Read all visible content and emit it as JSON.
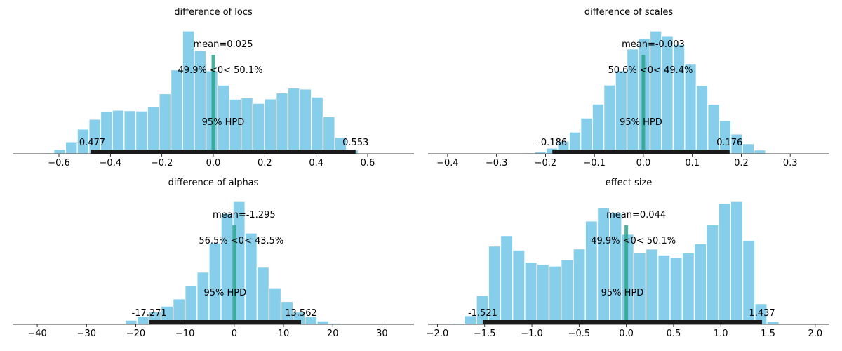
{
  "colors": {
    "bar": "#87ceeb",
    "hpd": "#1a1a1a",
    "ref": "#2ca58d"
  },
  "chart_data": [
    {
      "type": "histogram",
      "title": "difference of locs",
      "xlim": [
        -0.78,
        0.78
      ],
      "xticks": [
        -0.6,
        -0.4,
        -0.2,
        0.0,
        0.2,
        0.4,
        0.6
      ],
      "xtick_labels": [
        "−0.6",
        "−0.4",
        "−0.2",
        "0.0",
        "0.2",
        "0.4",
        "0.6"
      ],
      "bin_start": -0.6653,
      "bin_width": 0.0455,
      "counts": [
        0.8,
        3.6,
        9.8,
        20.1,
        28.1,
        34.3,
        35.5,
        35.1,
        34.8,
        38.6,
        48.9,
        68.3,
        100,
        84.2,
        67.5,
        55.9,
        44.5,
        45.5,
        41.1,
        44.7,
        49.5,
        53.5,
        52.7,
        46.2,
        30.2,
        13.4,
        3.1
      ],
      "mean_label": "mean=0.025",
      "ref_value": 0.0,
      "ref_label": "49.9% <0< 50.1%",
      "hpd_label": "95% HPD",
      "hpd": [
        -0.477,
        0.553
      ],
      "hpd_low_label": "-0.477",
      "hpd_high_label": "0.553"
    },
    {
      "type": "histogram",
      "title": "difference of scales",
      "xlim": [
        -0.44,
        0.38
      ],
      "xticks": [
        -0.4,
        -0.3,
        -0.2,
        -0.1,
        0.0,
        0.1,
        0.2,
        0.3
      ],
      "xtick_labels": [
        "−0.4",
        "−0.3",
        "−0.2",
        "−0.1",
        "0.0",
        "0.1",
        "0.2",
        "0.3"
      ],
      "bin_start": -0.2695,
      "bin_width": 0.0236,
      "counts": [
        0.3,
        0.8,
        1.7,
        4.6,
        10.3,
        17.7,
        29.1,
        40.5,
        56.0,
        67.6,
        85.3,
        93.7,
        100,
        96.1,
        89.1,
        73.4,
        55.6,
        40.4,
        27.0,
        16.1,
        8.2,
        3.1,
        0.6
      ],
      "mean_label": "mean=-0.003",
      "ref_value": 0.0,
      "ref_label": "50.6% <0< 49.4%",
      "hpd_label": "95% HPD",
      "hpd": [
        -0.186,
        0.176
      ],
      "hpd_low_label": "-0.186",
      "hpd_high_label": "0.176"
    },
    {
      "type": "histogram",
      "title": "difference of alphas",
      "xlim": [
        -45.0,
        36.5
      ],
      "xticks": [
        -40,
        -30,
        -20,
        -10,
        0,
        10,
        20,
        30
      ],
      "xtick_labels": [
        "−40",
        "−30",
        "−20",
        "−10",
        "0",
        "10",
        "20",
        "30"
      ],
      "bin_start": -24.6,
      "bin_width": 2.436,
      "counts": [
        0.6,
        3.4,
        6.6,
        10.1,
        14.8,
        20.7,
        31.3,
        42.5,
        66.2,
        90.3,
        100,
        74.3,
        46.5,
        29.7,
        18.6,
        10.0,
        6.2,
        2.8,
        1.0
      ],
      "mean_label": "mean=-1.295",
      "ref_value": 0.0,
      "ref_label": "56.5% <0< 43.5%",
      "hpd_label": "95% HPD",
      "hpd": [
        -17.271,
        13.562
      ],
      "hpd_low_label": "-17.271",
      "hpd_high_label": "13.562"
    },
    {
      "type": "histogram",
      "title": "effect size",
      "xlim": [
        -2.1,
        2.15
      ],
      "xticks": [
        -2.0,
        -1.5,
        -1.0,
        -0.5,
        0.0,
        0.5,
        1.0,
        1.5,
        2.0
      ],
      "xtick_labels": [
        "−2.0",
        "−1.5",
        "−1.0",
        "−0.5",
        "0.0",
        "0.5",
        "1.0",
        "1.5",
        "2.0"
      ],
      "bin_start": -1.844,
      "bin_width": 0.1282,
      "counts": [
        1.0,
        7.4,
        24.7,
        67.0,
        76.0,
        63.6,
        53.2,
        51.3,
        49.9,
        55.2,
        64.6,
        88.5,
        100,
        95.8,
        77.1,
        61.5,
        64.5,
        59.4,
        57.3,
        61.2,
        69.0,
        85.3,
        103.6,
        105.2,
        71.7,
        17.7,
        2.5
      ],
      "mean_label": "mean=0.044",
      "ref_value": 0.0,
      "ref_label": "49.9% <0< 50.1%",
      "hpd_label": "95% HPD",
      "hpd": [
        -1.521,
        1.437
      ],
      "hpd_low_label": "-1.521",
      "hpd_high_label": "1.437"
    }
  ]
}
